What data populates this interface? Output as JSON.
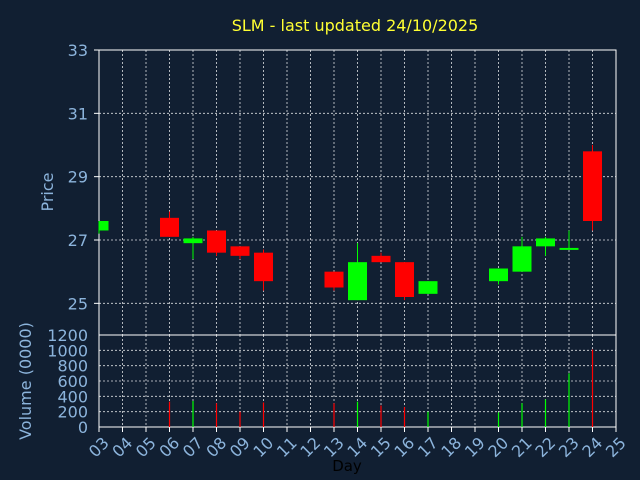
{
  "chart_data": {
    "type": "candlestick",
    "title": "SLM - last updated 24/10/2025",
    "xlabel": "Day",
    "colors": {
      "background": "#111f32",
      "up": "#00ff00",
      "down": "#ff0000",
      "title": "#ffff33",
      "axis_text": "#8cb4dc",
      "grid": "#ffffff"
    },
    "x_ticks": [
      "03",
      "04",
      "05",
      "06",
      "07",
      "08",
      "09",
      "10",
      "11",
      "12",
      "13",
      "14",
      "15",
      "16",
      "17",
      "18",
      "19",
      "20",
      "21",
      "22",
      "23",
      "24",
      "25"
    ],
    "price_panel": {
      "ylabel": "Price",
      "ylim": [
        24,
        33
      ],
      "yticks": [
        "25",
        "27",
        "29",
        "31",
        "33"
      ],
      "candles": [
        {
          "day": "03",
          "open": 27.3,
          "high": 27.6,
          "low": 27.2,
          "close": 27.6
        },
        {
          "day": "06",
          "open": 27.7,
          "high": 27.9,
          "low": 27.1,
          "close": 27.1
        },
        {
          "day": "07",
          "open": 26.9,
          "high": 27.1,
          "low": 26.4,
          "close": 27.05
        },
        {
          "day": "08",
          "open": 27.3,
          "high": 27.3,
          "low": 26.5,
          "close": 26.6
        },
        {
          "day": "09",
          "open": 26.8,
          "high": 26.8,
          "low": 26.4,
          "close": 26.5
        },
        {
          "day": "10",
          "open": 26.6,
          "high": 26.7,
          "low": 25.4,
          "close": 25.7
        },
        {
          "day": "13",
          "open": 26.0,
          "high": 26.0,
          "low": 25.4,
          "close": 25.5
        },
        {
          "day": "14",
          "open": 25.1,
          "high": 26.9,
          "low": 25.1,
          "close": 26.3
        },
        {
          "day": "15",
          "open": 26.5,
          "high": 26.6,
          "low": 26.3,
          "close": 26.3
        },
        {
          "day": "16",
          "open": 26.3,
          "high": 26.3,
          "low": 25.1,
          "close": 25.2
        },
        {
          "day": "17",
          "open": 25.3,
          "high": 25.7,
          "low": 25.3,
          "close": 25.7
        },
        {
          "day": "20",
          "open": 25.7,
          "high": 26.1,
          "low": 25.6,
          "close": 26.1
        },
        {
          "day": "21",
          "open": 26.0,
          "high": 27.1,
          "low": 26.0,
          "close": 26.8
        },
        {
          "day": "22",
          "open": 26.8,
          "high": 27.1,
          "low": 26.5,
          "close": 27.05
        },
        {
          "day": "23",
          "open": 26.7,
          "high": 27.3,
          "low": 26.7,
          "close": 26.75
        },
        {
          "day": "24",
          "open": 29.8,
          "high": 30.0,
          "low": 27.3,
          "close": 27.6
        }
      ]
    },
    "volume_panel": {
      "ylabel": "Volume (0000)",
      "ylim": [
        0,
        1200
      ],
      "yticks": [
        "0",
        "200",
        "400",
        "600",
        "800",
        "1000",
        "1200"
      ],
      "bars": [
        {
          "day": "03",
          "value": 0,
          "dir": "up"
        },
        {
          "day": "06",
          "value": 330,
          "dir": "down"
        },
        {
          "day": "07",
          "value": 340,
          "dir": "up"
        },
        {
          "day": "08",
          "value": 310,
          "dir": "down"
        },
        {
          "day": "09",
          "value": 200,
          "dir": "down"
        },
        {
          "day": "10",
          "value": 320,
          "dir": "down"
        },
        {
          "day": "13",
          "value": 310,
          "dir": "down"
        },
        {
          "day": "14",
          "value": 330,
          "dir": "up"
        },
        {
          "day": "15",
          "value": 280,
          "dir": "down"
        },
        {
          "day": "16",
          "value": 260,
          "dir": "down"
        },
        {
          "day": "17",
          "value": 200,
          "dir": "up"
        },
        {
          "day": "20",
          "value": 190,
          "dir": "up"
        },
        {
          "day": "21",
          "value": 310,
          "dir": "up"
        },
        {
          "day": "22",
          "value": 360,
          "dir": "up"
        },
        {
          "day": "23",
          "value": 700,
          "dir": "up"
        },
        {
          "day": "24",
          "value": 1010,
          "dir": "down"
        }
      ]
    }
  }
}
